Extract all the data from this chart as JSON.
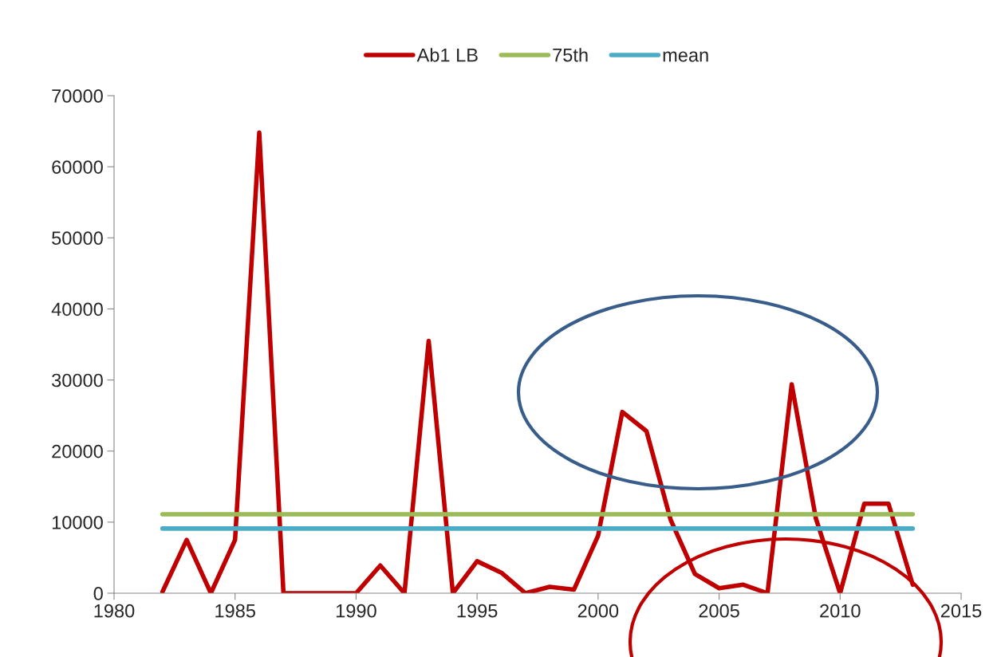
{
  "chart_data": {
    "type": "line",
    "x": [
      1982,
      1983,
      1984,
      1985,
      1986,
      1987,
      1988,
      1989,
      1990,
      1991,
      1992,
      1993,
      1994,
      1995,
      1996,
      1997,
      1998,
      1999,
      2000,
      2001,
      2002,
      2003,
      2004,
      2005,
      2006,
      2007,
      2008,
      2009,
      2010,
      2011,
      2012,
      2013
    ],
    "series": [
      {
        "name": "Ab1 LB",
        "color": "#c00000",
        "values": [
          200,
          7500,
          0,
          7500,
          64800,
          0,
          0,
          0,
          0,
          3900,
          0,
          35500,
          0,
          4500,
          2900,
          0,
          900,
          500,
          8100,
          25500,
          22800,
          10300,
          2700,
          700,
          1200,
          0,
          29400,
          10500,
          0,
          12600,
          12600,
          1200
        ]
      },
      {
        "name": "75th",
        "color": "#9bbb59",
        "values": [
          11100,
          11100,
          11100,
          11100,
          11100,
          11100,
          11100,
          11100,
          11100,
          11100,
          11100,
          11100,
          11100,
          11100,
          11100,
          11100,
          11100,
          11100,
          11100,
          11100,
          11100,
          11100,
          11100,
          11100,
          11100,
          11100,
          11100,
          11100,
          11100,
          11100,
          11100,
          11100
        ]
      },
      {
        "name": "mean",
        "color": "#4bacc6",
        "values": [
          9100,
          9100,
          9100,
          9100,
          9100,
          9100,
          9100,
          9100,
          9100,
          9100,
          9100,
          9100,
          9100,
          9100,
          9100,
          9100,
          9100,
          9100,
          9100,
          9100,
          9100,
          9100,
          9100,
          9100,
          9100,
          9100,
          9100,
          9100,
          9100,
          9100,
          9100,
          9100
        ]
      }
    ],
    "xlim": [
      1980,
      2015
    ],
    "xticks": [
      1980,
      1985,
      1990,
      1995,
      2000,
      2005,
      2010,
      2015
    ],
    "ylim": [
      0,
      70000
    ],
    "yticks": [
      0,
      10000,
      20000,
      30000,
      40000,
      50000,
      60000,
      70000
    ],
    "grid": false,
    "legend": "top",
    "marker": "none",
    "line_style": "solid"
  }
}
